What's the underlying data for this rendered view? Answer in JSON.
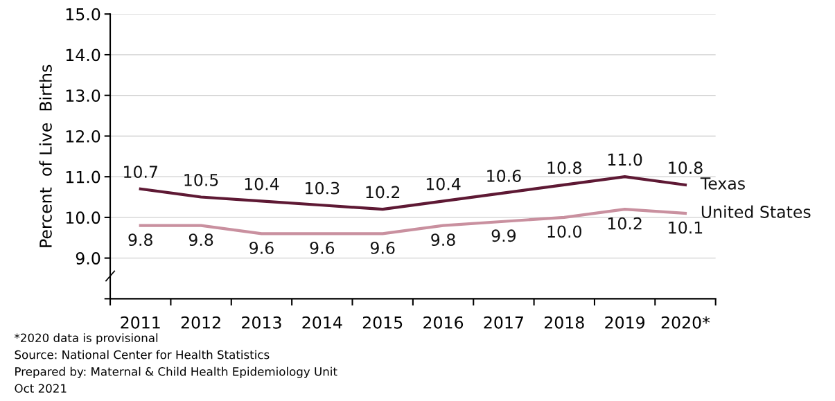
{
  "chart_data": {
    "type": "line",
    "ylabel": "Percent  of Live  Births",
    "categories": [
      "2011",
      "2012",
      "2013",
      "2014",
      "2015",
      "2016",
      "2017",
      "2018",
      "2019",
      "2020*"
    ],
    "series": [
      {
        "name": "Texas",
        "color": "#5e1934",
        "values": [
          10.7,
          10.5,
          10.4,
          10.3,
          10.2,
          10.4,
          10.6,
          10.8,
          11.0,
          10.8
        ],
        "value_labels": [
          "10.7",
          "10.5",
          "10.4",
          "10.3",
          "10.2",
          "10.4",
          "10.6",
          "10.8",
          "11.0",
          "10.8"
        ]
      },
      {
        "name": "United States",
        "color": "#c9909f",
        "values": [
          9.8,
          9.8,
          9.6,
          9.6,
          9.6,
          9.8,
          9.9,
          10.0,
          10.2,
          10.1
        ],
        "value_labels": [
          "9.8",
          "9.8",
          "9.6",
          "9.6",
          "9.6",
          "9.8",
          "9.9",
          "10.0",
          "10.2",
          "10.1"
        ]
      }
    ],
    "ylim": [
      8,
      15
    ],
    "yticks": [
      {
        "value": 8,
        "label": null
      },
      {
        "value": 9,
        "label": "9.0"
      },
      {
        "value": 10,
        "label": "10.0"
      },
      {
        "value": 11,
        "label": "11.0"
      },
      {
        "value": 12,
        "label": "12.0"
      },
      {
        "value": 13,
        "label": "13.0"
      },
      {
        "value": 14,
        "label": "14.0"
      },
      {
        "value": 15,
        "label": "15.0"
      }
    ],
    "grid": "y",
    "legend": false,
    "marker": "none",
    "line_style": "solid",
    "annotations": [
      "*2020 data is provisional",
      "Source: National Center for Health Statistics",
      "Prepared by: Maternal & Child Health Epidemiology Unit",
      "Oct 2021"
    ]
  }
}
